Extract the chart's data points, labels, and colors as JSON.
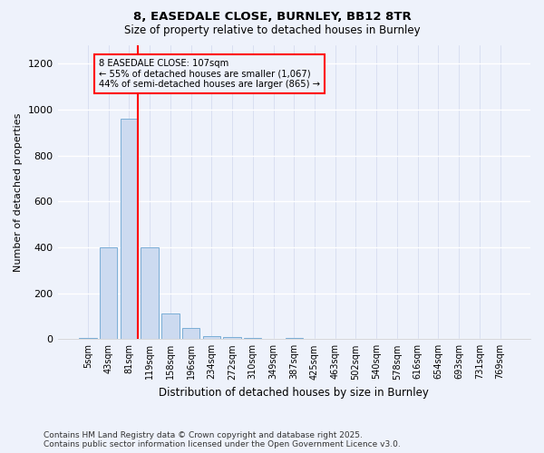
{
  "title_line1": "8, EASEDALE CLOSE, BURNLEY, BB12 8TR",
  "title_line2": "Size of property relative to detached houses in Burnley",
  "xlabel": "Distribution of detached houses by size in Burnley",
  "ylabel": "Number of detached properties",
  "categories": [
    "5sqm",
    "43sqm",
    "81sqm",
    "119sqm",
    "158sqm",
    "196sqm",
    "234sqm",
    "272sqm",
    "310sqm",
    "349sqm",
    "387sqm",
    "425sqm",
    "463sqm",
    "502sqm",
    "540sqm",
    "578sqm",
    "616sqm",
    "654sqm",
    "693sqm",
    "731sqm",
    "769sqm"
  ],
  "values": [
    5,
    400,
    960,
    400,
    110,
    50,
    15,
    10,
    5,
    2,
    5,
    2,
    0,
    0,
    0,
    0,
    0,
    0,
    0,
    0,
    0
  ],
  "bar_color": "#ccdaf0",
  "bar_edgecolor": "#7aaed6",
  "annotation_text": "8 EASEDALE CLOSE: 107sqm\n← 55% of detached houses are smaller (1,067)\n44% of semi-detached houses are larger (865) →",
  "ylim": [
    0,
    1280
  ],
  "yticks": [
    0,
    200,
    400,
    600,
    800,
    1000,
    1200
  ],
  "footer_line1": "Contains HM Land Registry data © Crown copyright and database right 2025.",
  "footer_line2": "Contains public sector information licensed under the Open Government Licence v3.0.",
  "background_color": "#eef2fb"
}
